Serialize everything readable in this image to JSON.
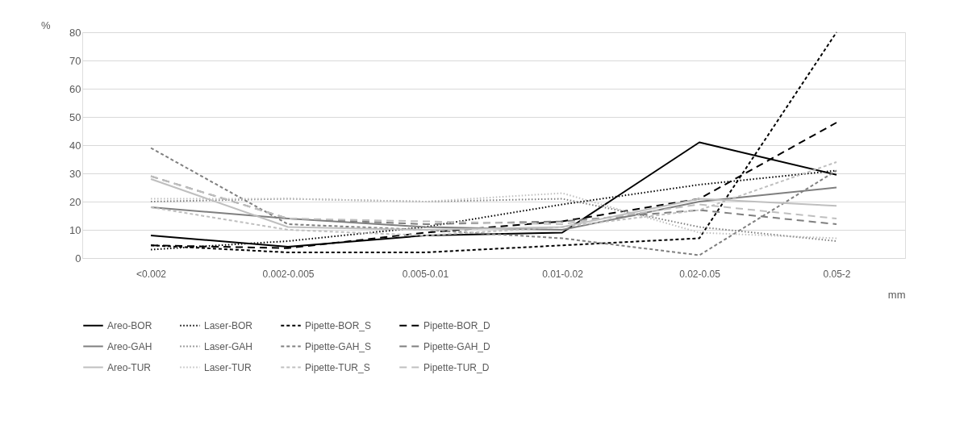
{
  "chart_data": {
    "type": "line",
    "ylabel": "%",
    "xlabel": "mm",
    "categories": [
      "<0.002",
      "0.002-0.005",
      "0.005-0.01",
      "0.01-0.02",
      "0.02-0.05",
      "0.05-2"
    ],
    "ylim": [
      0,
      80
    ],
    "yticks": [
      0,
      10,
      20,
      30,
      40,
      50,
      60,
      70,
      80
    ],
    "grid": "y",
    "legend": "bottom",
    "marker": "none",
    "series": [
      {
        "name": "Areo-BOR",
        "color": "#000000",
        "line_style": "solid",
        "values": [
          8,
          4,
          8,
          9,
          41,
          29.5
        ]
      },
      {
        "name": "Laser-BOR",
        "color": "#000000",
        "line_style": "dotted",
        "values": [
          3,
          6,
          11,
          19,
          26,
          31
        ]
      },
      {
        "name": "Pipette-BOR_S",
        "color": "#000000",
        "line_style": "dashed",
        "values": [
          4.5,
          2,
          2,
          4.5,
          7,
          80
        ]
      },
      {
        "name": "Pipette-BOR_D",
        "color": "#000000",
        "line_style": "dashed",
        "values": [
          4.5,
          3.5,
          9,
          13,
          21,
          48
        ]
      },
      {
        "name": "Areo-GAH",
        "color": "#7f7f7f",
        "line_style": "solid",
        "values": [
          18,
          14,
          11,
          10,
          20,
          25
        ]
      },
      {
        "name": "Laser-GAH",
        "color": "#7f7f7f",
        "line_style": "dotted",
        "values": [
          20,
          21,
          20,
          21,
          11,
          6
        ]
      },
      {
        "name": "Pipette-GAH_S",
        "color": "#7f7f7f",
        "line_style": "dashed",
        "values": [
          39,
          12,
          10,
          7,
          1,
          31
        ]
      },
      {
        "name": "Pipette-GAH_D",
        "color": "#7f7f7f",
        "line_style": "dashed",
        "values": [
          29,
          14,
          12,
          13,
          17,
          12
        ]
      },
      {
        "name": "Areo-TUR",
        "color": "#bfbfbf",
        "line_style": "solid",
        "values": [
          28,
          11,
          10,
          11,
          21,
          18.5
        ]
      },
      {
        "name": "Laser-TUR",
        "color": "#bfbfbf",
        "line_style": "dotted",
        "values": [
          21,
          21,
          20,
          23,
          9,
          7
        ]
      },
      {
        "name": "Pipette-TUR_S",
        "color": "#bfbfbf",
        "line_style": "dashed",
        "values": [
          18,
          10,
          8,
          11,
          17,
          34
        ]
      },
      {
        "name": "Pipette-TUR_D",
        "color": "#bfbfbf",
        "line_style": "dashed",
        "values": [
          29,
          14,
          13,
          12,
          19,
          14
        ]
      }
    ]
  }
}
